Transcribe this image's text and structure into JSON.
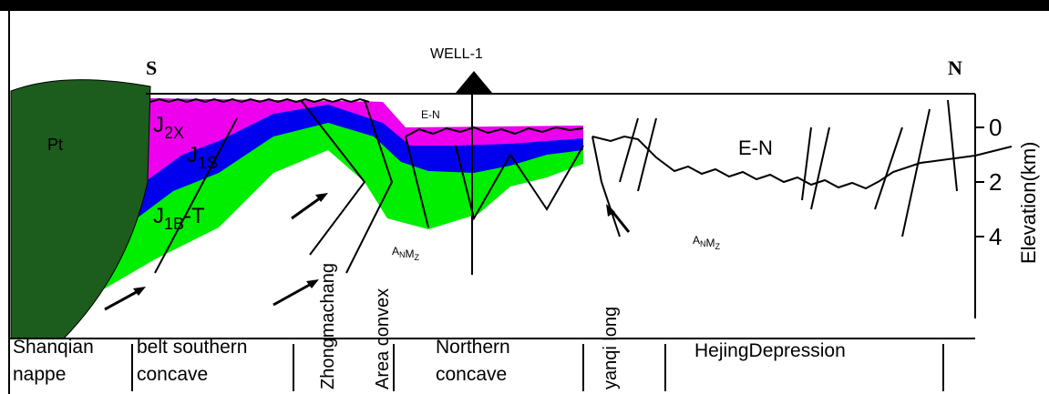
{
  "header": {
    "south": "S",
    "well": "WELL-1",
    "north": "N"
  },
  "units": {
    "pt": "Pt",
    "j2x": {
      "base": "J",
      "sub": "2X"
    },
    "j1s": {
      "base": "J",
      "sub": "1S"
    },
    "j1bt": {
      "base": "J",
      "sub": "1B",
      "tail": "-T"
    },
    "en_small": "E-N",
    "en_large": "E-N",
    "anmz": [
      [
        {
          "base": "A",
          "sub": "N"
        },
        {
          "base": "M",
          "sub": "Z"
        }
      ],
      [
        {
          "base": "A",
          "sub": "N"
        },
        {
          "base": "M",
          "sub": "Z"
        }
      ]
    ]
  },
  "axis": {
    "title": "Elevation(km)",
    "ticks": [
      0,
      2,
      4
    ]
  },
  "regions": [
    {
      "lines": [
        "Shanqian",
        "nappe"
      ]
    },
    {
      "lines": [
        "belt southern",
        "concave"
      ]
    },
    {
      "lines": [
        "Zhongmachang"
      ],
      "vertical": true
    },
    {
      "lines": [
        "Area convex"
      ],
      "vertical": true
    },
    {
      "lines": [
        "Northern",
        "concave"
      ]
    },
    {
      "lines": [
        "yanqi long"
      ],
      "vertical": true
    },
    {
      "lines": [
        "HejingDepression"
      ]
    }
  ]
}
